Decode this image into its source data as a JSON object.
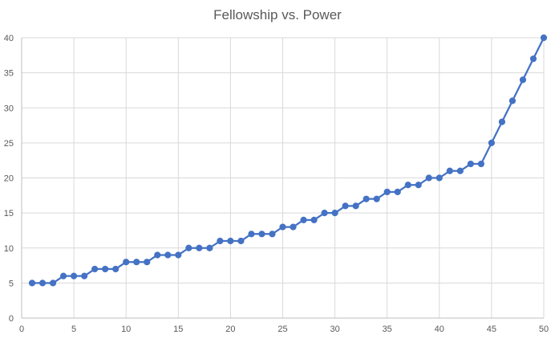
{
  "chart_data": {
    "type": "line",
    "title": "Fellowship vs. Power",
    "xlabel": "",
    "ylabel": "",
    "xlim": [
      0,
      50
    ],
    "ylim": [
      0,
      40
    ],
    "xticks": [
      0,
      5,
      10,
      15,
      20,
      25,
      30,
      35,
      40,
      45,
      50
    ],
    "yticks": [
      0,
      5,
      10,
      15,
      20,
      25,
      30,
      35,
      40
    ],
    "grid": true,
    "legend": "none",
    "colors": {
      "series": "#4472C4",
      "grid": "#d9d9d9",
      "axis": "#bfbfbf",
      "text": "#595959"
    },
    "series": [
      {
        "x": [
          1,
          2,
          3,
          4,
          5,
          6,
          7,
          8,
          9,
          10,
          11,
          12,
          13,
          14,
          15,
          16,
          17,
          18,
          19,
          20,
          21,
          22,
          23,
          24,
          25,
          26,
          27,
          28,
          29,
          30,
          31,
          32,
          33,
          34,
          35,
          36,
          37,
          38,
          39,
          40,
          41,
          42,
          43,
          44,
          45,
          46,
          47,
          48,
          49,
          50
        ],
        "values": [
          5,
          5,
          5,
          6,
          6,
          6,
          7,
          7,
          7,
          8,
          8,
          8,
          9,
          9,
          9,
          10,
          10,
          10,
          11,
          11,
          11,
          12,
          12,
          12,
          13,
          13,
          14,
          14,
          15,
          15,
          16,
          16,
          17,
          17,
          18,
          18,
          19,
          19,
          20,
          20,
          21,
          21,
          22,
          22,
          25,
          28,
          31,
          34,
          37,
          40
        ]
      }
    ]
  }
}
